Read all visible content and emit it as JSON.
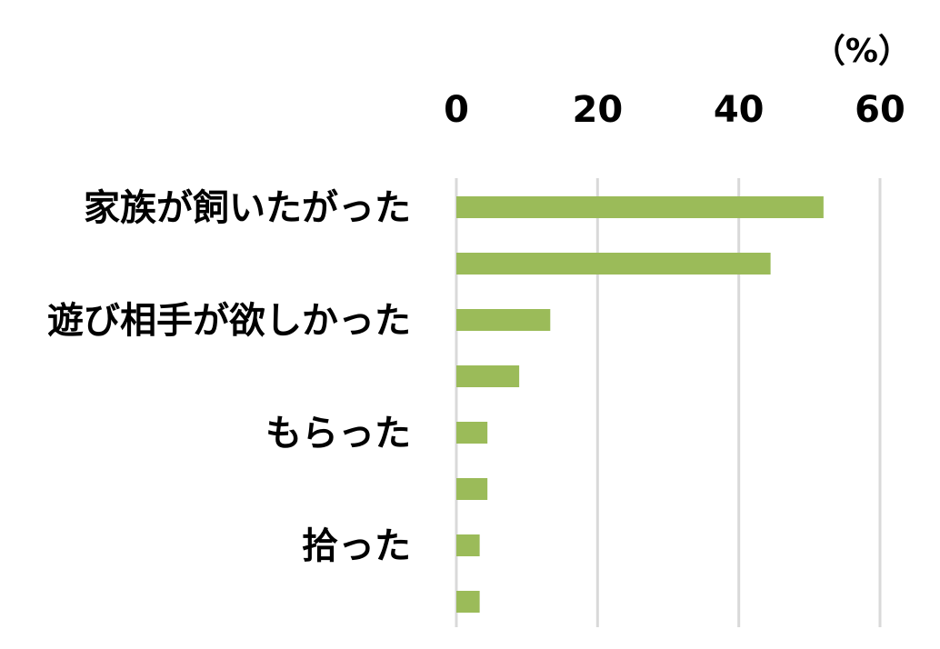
{
  "chart_data": {
    "type": "bar",
    "orientation": "horizontal",
    "unit_label": "（%）",
    "categories": [
      "家族が飼いたがった",
      "",
      "遊び相手が欲しかった",
      "",
      "もらった",
      "",
      "拾った",
      ""
    ],
    "values": [
      52,
      44.5,
      13.3,
      8.9,
      4.4,
      4.4,
      3.3,
      3.3
    ],
    "xlim": [
      0,
      60
    ],
    "x_ticks": [
      "0",
      "20",
      "40",
      "60"
    ],
    "x_tick_values": [
      0,
      20,
      40,
      60
    ],
    "grid": true,
    "axis_position": "top",
    "legend": "none",
    "bar_color": "#9bbb59",
    "grid_color": "#d9d9d9"
  }
}
